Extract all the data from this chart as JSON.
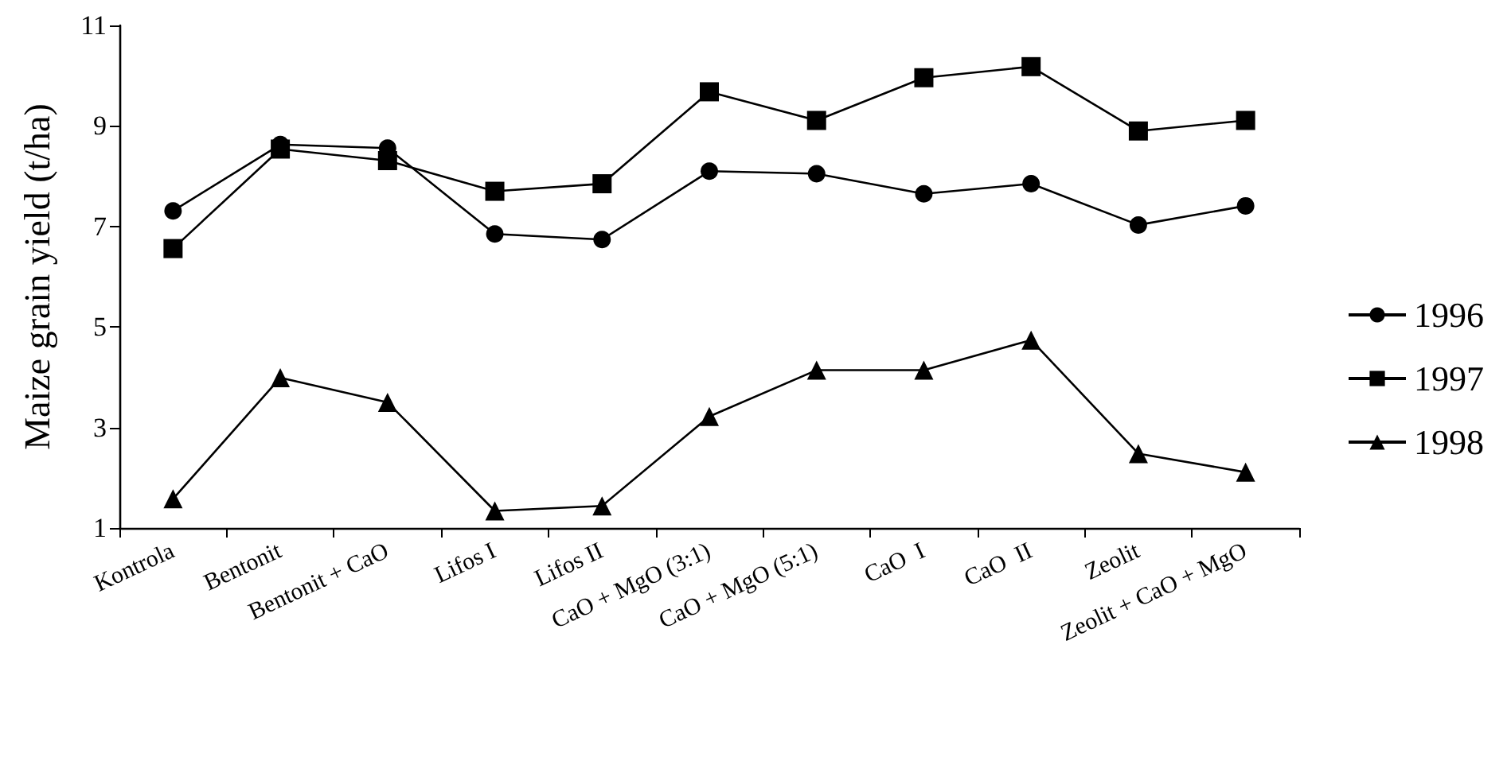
{
  "chart_data": {
    "type": "line",
    "ylabel": "Maize grain yield (t/ha)",
    "categories": [
      "Kontrola",
      "Bentonit",
      "Bentonit + CaO",
      "Lifos I",
      "Lifos II",
      "CaO + MgO (3:1)",
      "CaO + MgO (5:1)",
      "CaO  I",
      "CaO  II",
      "Zeolit",
      "Zeolit + CaO + MgO"
    ],
    "series": [
      {
        "name": "1996",
        "color": "#000000",
        "marker": "circle",
        "values": [
          7.31,
          8.63,
          8.56,
          6.85,
          6.74,
          8.1,
          8.05,
          7.65,
          7.85,
          7.03,
          7.41
        ]
      },
      {
        "name": "1997",
        "color": "#000000",
        "marker": "square",
        "values": [
          6.56,
          8.54,
          8.31,
          7.7,
          7.85,
          9.68,
          9.11,
          9.96,
          10.18,
          8.9,
          9.11
        ]
      },
      {
        "name": "1998",
        "color": "#000000",
        "marker": "triangle",
        "values": [
          1.58,
          3.99,
          3.5,
          1.34,
          1.44,
          3.22,
          4.14,
          4.14,
          4.74,
          2.48,
          2.11
        ]
      }
    ],
    "ylim": [
      1,
      11
    ],
    "yticks": [
      1,
      3,
      5,
      7,
      9,
      11
    ],
    "grid": false,
    "legend": "right",
    "line_style": "solid"
  }
}
